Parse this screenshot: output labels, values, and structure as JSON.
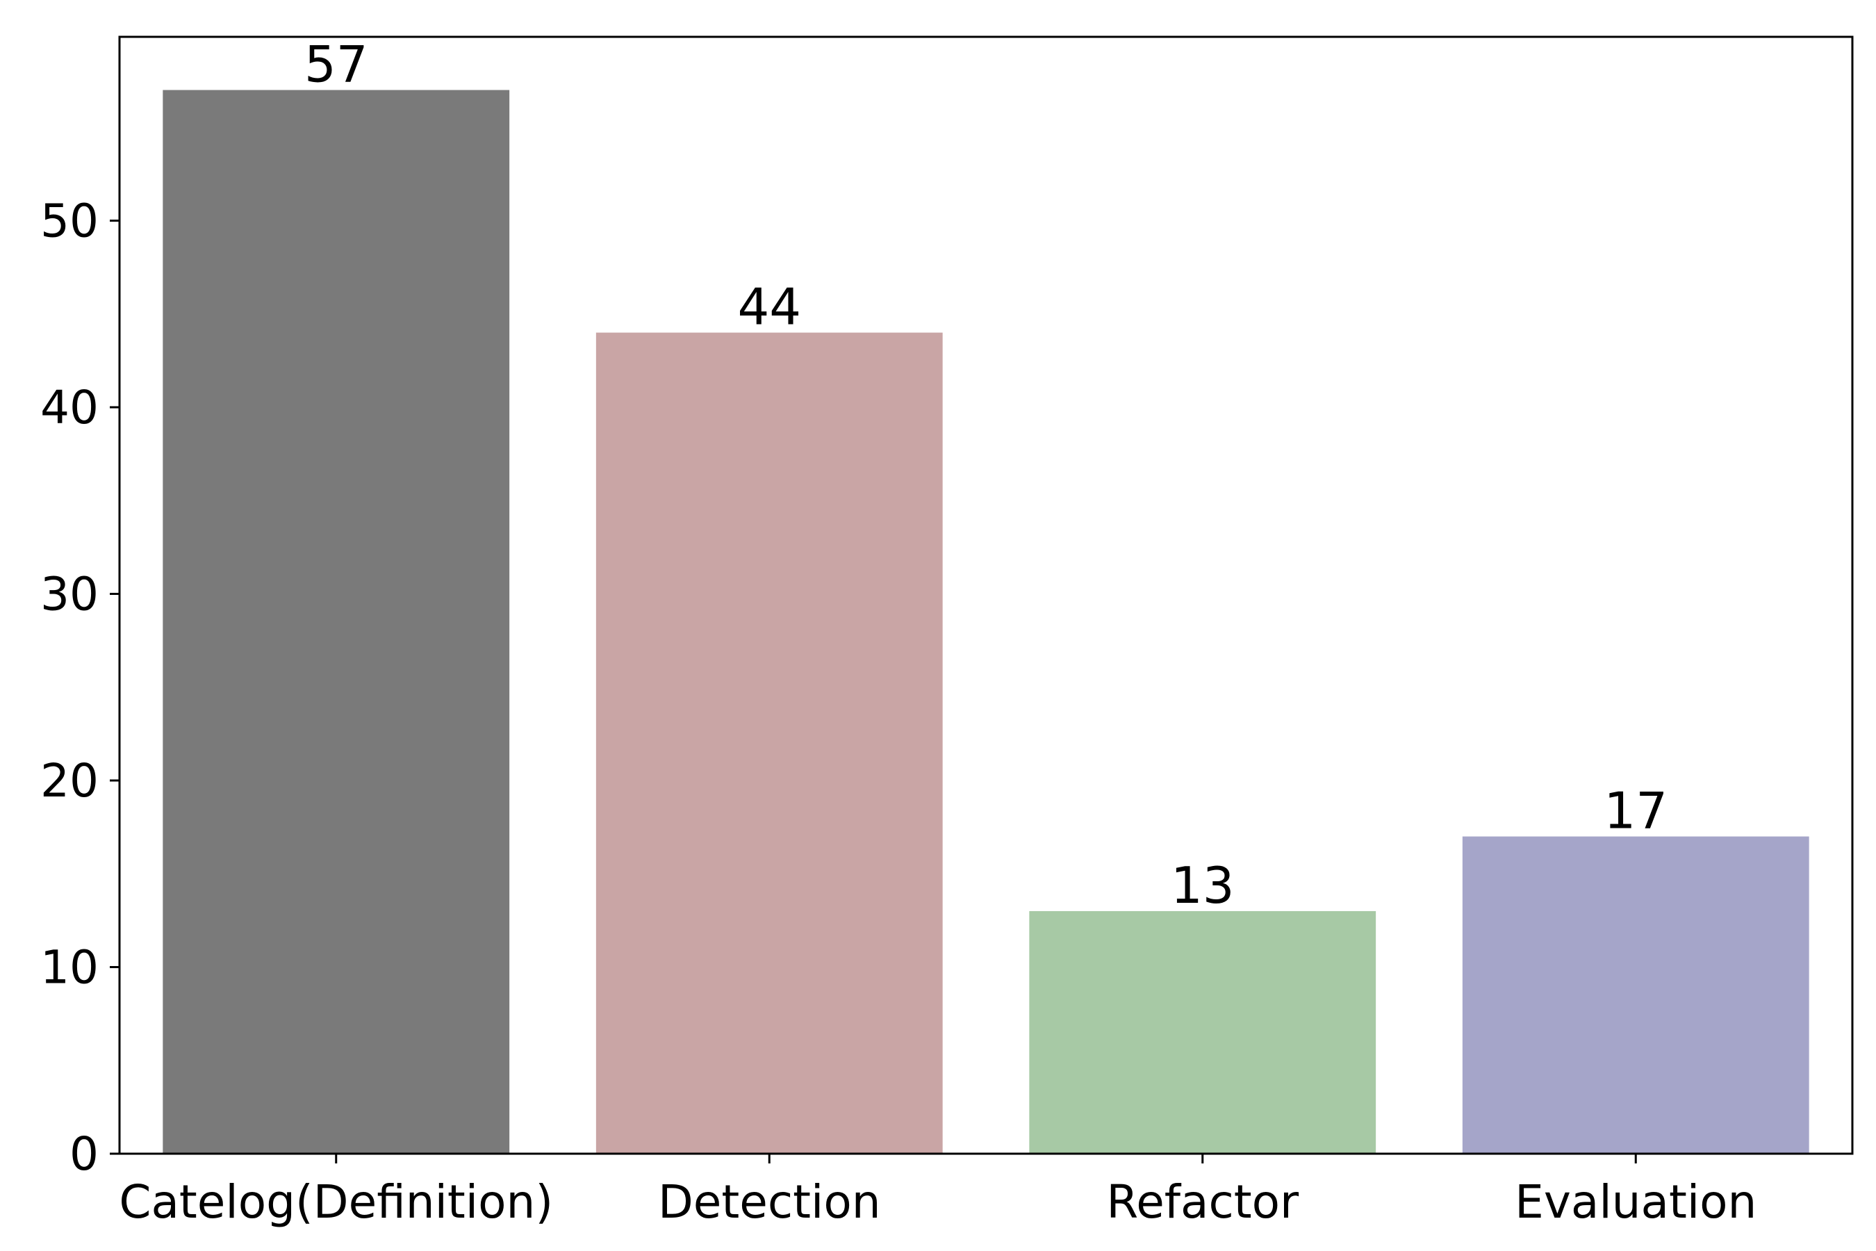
{
  "chart_data": {
    "type": "bar",
    "title": "",
    "xlabel": "",
    "ylabel": "",
    "categories": [
      "Catelog(Definition)",
      "Detection",
      "Refactor",
      "Evaluation"
    ],
    "values": [
      57,
      44,
      13,
      17
    ],
    "data_labels": [
      "57",
      "44",
      "13",
      "17"
    ],
    "colors": [
      "#7a7a7a",
      "#c9a5a5",
      "#a7c9a5",
      "#a5a5c9"
    ],
    "ylim": [
      0,
      59.85
    ],
    "yticks": [
      0,
      10,
      20,
      30,
      40,
      50
    ],
    "grid": false,
    "legend": "none"
  }
}
